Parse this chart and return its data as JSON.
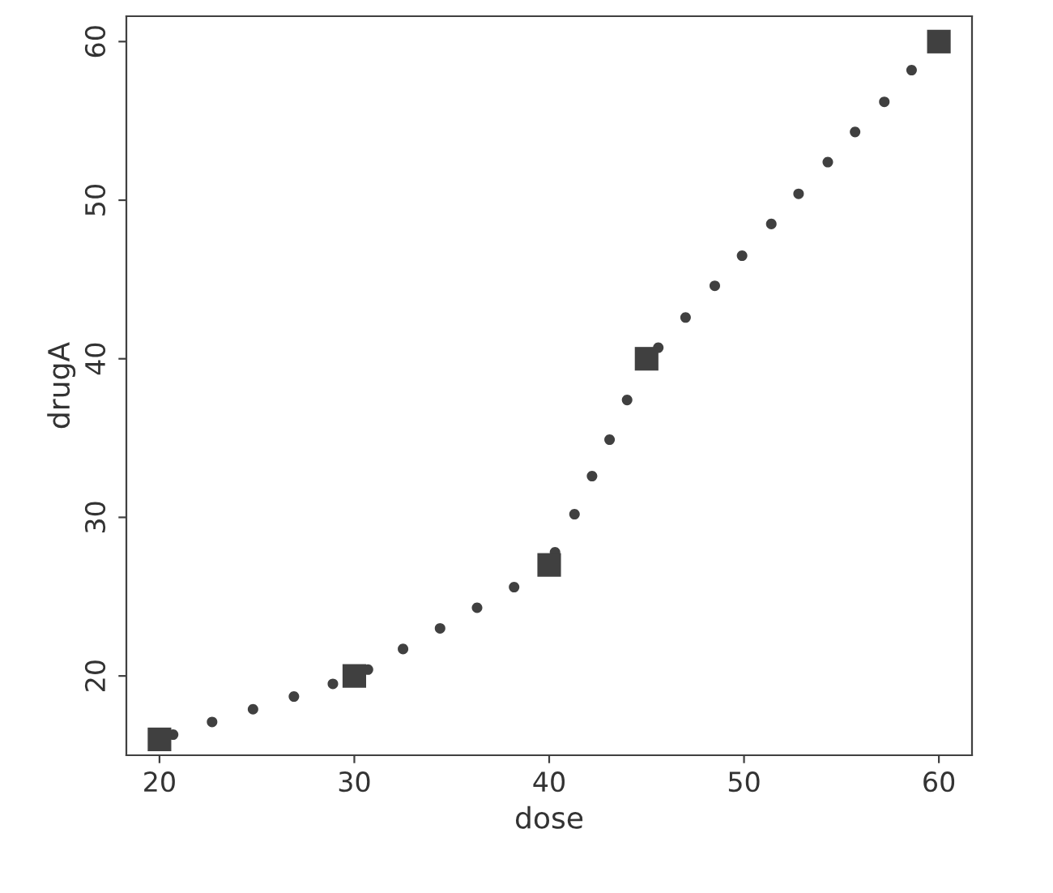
{
  "chart_data": {
    "type": "scatter",
    "xlabel": "dose",
    "ylabel": "drugA",
    "xlim": [
      18.3,
      61.7
    ],
    "ylim": [
      15,
      61.6
    ],
    "xticks": [
      20,
      30,
      40,
      50,
      60
    ],
    "yticks": [
      20,
      30,
      40,
      50,
      60
    ],
    "grid": false,
    "legend": false,
    "series": [
      {
        "color": "#404040",
        "marker": "square",
        "x": [
          20,
          30,
          40,
          45,
          60
        ],
        "values": [
          16,
          20,
          27,
          40,
          60
        ]
      },
      {
        "color": "#404040",
        "marker": "circle",
        "x": [
          20.7,
          22.7,
          24.8,
          26.9,
          28.9,
          30.7,
          32.5,
          34.4,
          36.3,
          38.2,
          40.3,
          41.3,
          42.2,
          43.1,
          44.0,
          45.6,
          47.0,
          48.5,
          49.9,
          51.4,
          52.8,
          54.3,
          55.7,
          57.2,
          58.6
        ],
        "values": [
          16.3,
          17.1,
          17.9,
          18.7,
          19.5,
          20.4,
          21.7,
          23.0,
          24.3,
          25.6,
          27.8,
          30.2,
          32.6,
          34.9,
          37.4,
          40.7,
          42.6,
          44.6,
          46.5,
          48.5,
          50.4,
          52.4,
          54.3,
          56.2,
          58.2
        ]
      }
    ]
  }
}
